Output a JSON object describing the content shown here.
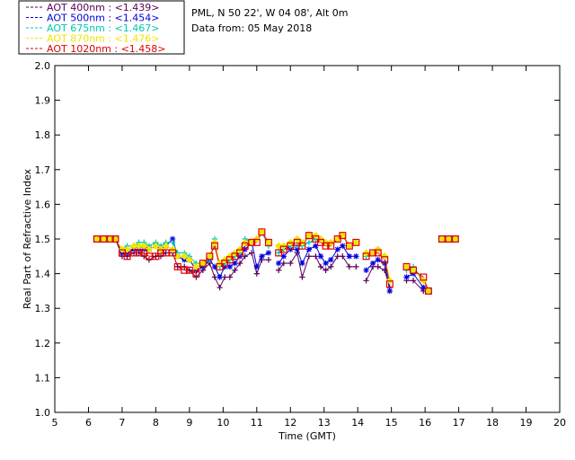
{
  "header": {
    "site_line": "PML, N 50 22', W 04 08', Alt 0m",
    "date_line": "Data from: 05 May 2018"
  },
  "chart_data": {
    "type": "line",
    "xlabel": "Time (GMT)",
    "ylabel": "Real Part of Refractive Index",
    "xlim": [
      5,
      20
    ],
    "ylim": [
      1.0,
      2.0
    ],
    "xticks": [
      "5",
      "6",
      "7",
      "8",
      "9",
      "10",
      "11",
      "12",
      "13",
      "14",
      "15",
      "16",
      "17",
      "18",
      "19",
      "20"
    ],
    "yticks": [
      "1.0",
      "1.1",
      "1.2",
      "1.3",
      "1.4",
      "1.5",
      "1.6",
      "1.7",
      "1.8",
      "1.9",
      "2.0"
    ],
    "x": [
      6.25,
      6.45,
      6.65,
      6.8,
      7.0,
      7.15,
      7.35,
      7.5,
      7.65,
      7.8,
      8.0,
      8.15,
      8.3,
      8.5,
      8.65,
      8.85,
      9.0,
      9.2,
      9.4,
      9.6,
      9.75,
      9.9,
      10.05,
      10.2,
      10.35,
      10.5,
      10.65,
      10.85,
      11.0,
      11.15,
      11.35,
      11.65,
      11.8,
      12.0,
      12.2,
      12.35,
      12.55,
      12.75,
      12.9,
      13.05,
      13.2,
      13.4,
      13.55,
      13.75,
      13.95,
      14.25,
      14.45,
      14.6,
      14.8,
      14.95,
      15.45,
      15.65,
      15.95,
      16.1,
      16.5,
      16.7,
      16.9
    ],
    "series": [
      {
        "name": "AOT  400nm : <1.439>",
        "color": "#5a005a",
        "marker": "plus",
        "values": [
          1.5,
          1.5,
          1.5,
          1.5,
          1.45,
          1.45,
          1.46,
          1.46,
          1.45,
          1.44,
          1.45,
          1.45,
          1.46,
          1.46,
          1.42,
          1.42,
          1.41,
          1.39,
          1.41,
          1.43,
          1.39,
          1.36,
          1.39,
          1.39,
          1.41,
          1.43,
          1.45,
          1.46,
          1.4,
          1.44,
          1.44,
          1.41,
          1.43,
          1.43,
          1.46,
          1.39,
          1.45,
          1.45,
          1.42,
          1.41,
          1.42,
          1.45,
          1.45,
          1.42,
          1.42,
          1.38,
          1.42,
          1.42,
          1.41,
          1.36,
          1.38,
          1.38,
          1.35,
          1.35,
          1.5,
          1.5,
          1.5
        ]
      },
      {
        "name": "AOT  500nm : <1.454>",
        "color": "#0000e0",
        "marker": "star",
        "values": [
          1.5,
          1.5,
          1.5,
          1.5,
          1.46,
          1.46,
          1.47,
          1.47,
          1.47,
          1.47,
          1.48,
          1.47,
          1.48,
          1.5,
          1.45,
          1.44,
          1.44,
          1.41,
          1.42,
          1.44,
          1.42,
          1.39,
          1.42,
          1.42,
          1.43,
          1.45,
          1.47,
          1.49,
          1.42,
          1.45,
          1.46,
          1.43,
          1.45,
          1.47,
          1.47,
          1.43,
          1.47,
          1.48,
          1.45,
          1.43,
          1.44,
          1.47,
          1.48,
          1.45,
          1.45,
          1.41,
          1.43,
          1.44,
          1.43,
          1.35,
          1.39,
          1.4,
          1.36,
          1.35,
          1.5,
          1.5,
          1.5
        ]
      },
      {
        "name": "AOT  675nm : <1.467>",
        "color": "#00c8b4",
        "marker": "plus",
        "values": [
          1.5,
          1.5,
          1.5,
          1.5,
          1.47,
          1.48,
          1.48,
          1.49,
          1.49,
          1.48,
          1.49,
          1.48,
          1.49,
          1.49,
          1.46,
          1.46,
          1.45,
          1.43,
          1.43,
          1.44,
          1.5,
          1.42,
          1.43,
          1.44,
          1.45,
          1.46,
          1.5,
          1.49,
          1.5,
          1.52,
          1.48,
          1.46,
          1.47,
          1.48,
          1.48,
          1.48,
          1.49,
          1.5,
          1.5,
          1.49,
          1.49,
          1.5,
          1.51,
          1.48,
          1.49,
          1.45,
          1.46,
          1.47,
          1.45,
          1.38,
          1.41,
          1.42,
          1.38,
          1.35,
          1.5,
          1.5,
          1.5
        ]
      },
      {
        "name": "AOT  870nm : <1.476>",
        "color": "#f0e600",
        "marker": "diamond",
        "values": [
          1.5,
          1.5,
          1.5,
          1.5,
          1.47,
          1.47,
          1.48,
          1.48,
          1.48,
          1.47,
          1.48,
          1.47,
          1.48,
          1.47,
          1.45,
          1.45,
          1.44,
          1.42,
          1.43,
          1.45,
          1.49,
          1.43,
          1.44,
          1.45,
          1.46,
          1.47,
          1.49,
          1.49,
          1.5,
          1.52,
          1.49,
          1.48,
          1.48,
          1.49,
          1.5,
          1.49,
          1.51,
          1.51,
          1.5,
          1.49,
          1.49,
          1.5,
          1.51,
          1.48,
          1.49,
          1.46,
          1.46,
          1.47,
          1.45,
          1.38,
          1.42,
          1.41,
          1.38,
          1.35,
          1.5,
          1.5,
          1.5
        ]
      },
      {
        "name": "AOT 1020nm : <1.458>",
        "color": "#e00000",
        "marker": "square",
        "values": [
          1.5,
          1.5,
          1.5,
          1.5,
          1.46,
          1.45,
          1.46,
          1.46,
          1.46,
          1.45,
          1.45,
          1.46,
          1.46,
          1.46,
          1.42,
          1.41,
          1.41,
          1.4,
          1.43,
          1.45,
          1.48,
          1.42,
          1.43,
          1.44,
          1.45,
          1.46,
          1.48,
          1.49,
          1.49,
          1.52,
          1.49,
          1.46,
          1.47,
          1.48,
          1.49,
          1.48,
          1.51,
          1.5,
          1.49,
          1.48,
          1.48,
          1.5,
          1.51,
          1.48,
          1.49,
          1.45,
          1.46,
          1.46,
          1.44,
          1.37,
          1.42,
          1.41,
          1.39,
          1.35,
          1.5,
          1.5,
          1.5
        ]
      }
    ]
  }
}
